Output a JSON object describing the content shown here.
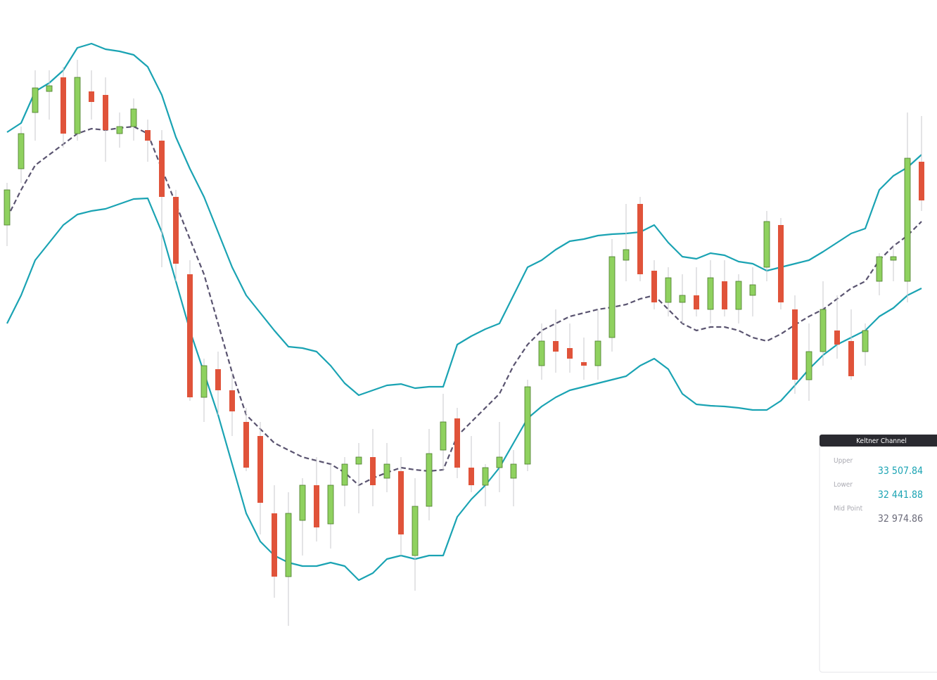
{
  "chart_data": {
    "type": "candlestick",
    "ylim": [
      29300,
      34700
    ],
    "up_color": "#8fd15f",
    "down_color": "#e0533a",
    "open": [
      32908,
      33356,
      33804,
      33972,
      34084,
      33636,
      33972,
      33944,
      33636,
      33692,
      33664,
      33580,
      33132,
      32516,
      31536,
      31760,
      31592,
      31340,
      31228,
      30612,
      30108,
      30556,
      30836,
      30528,
      30836,
      31004,
      31060,
      30892,
      30948,
      30276,
      30668,
      31116,
      31368,
      30976,
      30836,
      30976,
      30892,
      31004,
      31788,
      31984,
      31928,
      31816,
      31788,
      32012,
      32628,
      33076,
      32544,
      32292,
      32292,
      32348,
      32236,
      32460,
      32236,
      32348,
      32572,
      32908,
      32236,
      31676,
      31900,
      32068,
      31984,
      31900,
      32460,
      32628,
      32460,
      33412
    ],
    "high": [
      33244,
      33692,
      34140,
      34140,
      34168,
      34224,
      34140,
      34084,
      33804,
      33916,
      33748,
      33664,
      33188,
      32628,
      31844,
      31900,
      31732,
      31452,
      31340,
      30836,
      30780,
      30892,
      31060,
      31004,
      31060,
      31172,
      31284,
      31172,
      31060,
      30892,
      31284,
      31564,
      31452,
      31228,
      31004,
      31340,
      31116,
      31676,
      32124,
      32236,
      32124,
      32012,
      32236,
      32796,
      33076,
      33132,
      32628,
      32572,
      32516,
      32572,
      32628,
      32628,
      32516,
      32572,
      33020,
      32964,
      32348,
      32124,
      32460,
      32348,
      32236,
      32124,
      32684,
      32740,
      33804,
      33776
    ],
    "low": [
      32740,
      33244,
      33580,
      33748,
      33524,
      33580,
      33748,
      33412,
      33524,
      33580,
      33412,
      32572,
      32460,
      31508,
      31340,
      31396,
      31228,
      30948,
      30444,
      29940,
      29716,
      30276,
      30388,
      30332,
      30668,
      30612,
      30668,
      30780,
      30276,
      29996,
      30556,
      30948,
      30892,
      30780,
      30668,
      30780,
      30668,
      30948,
      31676,
      31732,
      31732,
      31676,
      31676,
      31900,
      32460,
      32460,
      32236,
      32180,
      32124,
      32180,
      32124,
      32180,
      32124,
      32180,
      32460,
      32236,
      31564,
      31508,
      31788,
      31844,
      31676,
      31788,
      32348,
      32460,
      32292,
      33020
    ],
    "close": [
      33188,
      33636,
      34000,
      34017,
      33636,
      34084,
      33888,
      33664,
      33692,
      33832,
      33580,
      33132,
      32600,
      31536,
      31788,
      31592,
      31424,
      30976,
      30696,
      30108,
      30612,
      30836,
      30500,
      30836,
      31004,
      31060,
      30836,
      31004,
      30444,
      30668,
      31088,
      31340,
      30976,
      30836,
      30976,
      31060,
      31004,
      31620,
      31984,
      31900,
      31844,
      31788,
      31984,
      32656,
      32712,
      32516,
      32292,
      32488,
      32348,
      32236,
      32488,
      32236,
      32460,
      32432,
      32936,
      32292,
      31676,
      31900,
      32236,
      31956,
      31704,
      32068,
      32656,
      32656,
      33440,
      33104
    ],
    "channel": {
      "title": "Keltner Channel",
      "band_color": "#1aa3b3",
      "mid_color": "#5a5470",
      "upper": [
        33647,
        33720,
        33972,
        34039,
        34140,
        34319,
        34353,
        34308,
        34291,
        34263,
        34168,
        33944,
        33608,
        33356,
        33132,
        32852,
        32572,
        32348,
        32208,
        32068,
        31939,
        31928,
        31900,
        31788,
        31648,
        31553,
        31592,
        31631,
        31642,
        31609,
        31620,
        31620,
        31956,
        32023,
        32079,
        32124,
        32348,
        32572,
        32628,
        32712,
        32779,
        32796,
        32824,
        32835,
        32841,
        32852,
        32908,
        32768,
        32656,
        32639,
        32684,
        32667,
        32617,
        32600,
        32544,
        32572,
        32600,
        32628,
        32695,
        32768,
        32841,
        32880,
        33188,
        33300,
        33367,
        33468
      ],
      "mid": [
        32964,
        33188,
        33384,
        33468,
        33552,
        33636,
        33675,
        33664,
        33681,
        33692,
        33636,
        33356,
        33076,
        32796,
        32516,
        32124,
        31732,
        31396,
        31284,
        31172,
        31116,
        31060,
        31032,
        31004,
        30937,
        30836,
        30892,
        30937,
        30976,
        30959,
        30948,
        30959,
        31228,
        31340,
        31452,
        31564,
        31788,
        31956,
        32068,
        32124,
        32180,
        32208,
        32236,
        32253,
        32275,
        32320,
        32348,
        32236,
        32124,
        32068,
        32096,
        32096,
        32068,
        32012,
        31984,
        32040,
        32113,
        32180,
        32236,
        32320,
        32404,
        32460,
        32628,
        32740,
        32824,
        32936
      ],
      "lower": [
        32124,
        32348,
        32628,
        32768,
        32908,
        32992,
        33020,
        33037,
        33076,
        33115,
        33121,
        32852,
        32460,
        32068,
        31732,
        31396,
        31004,
        30612,
        30388,
        30276,
        30220,
        30192,
        30192,
        30220,
        30192,
        30080,
        30136,
        30248,
        30276,
        30248,
        30276,
        30276,
        30584,
        30724,
        30836,
        30976,
        31172,
        31368,
        31463,
        31536,
        31592,
        31620,
        31648,
        31676,
        31704,
        31788,
        31844,
        31760,
        31564,
        31480,
        31469,
        31463,
        31452,
        31435,
        31435,
        31508,
        31631,
        31760,
        31872,
        31956,
        32012,
        32068,
        32180,
        32247,
        32348,
        32404
      ]
    },
    "readout": [
      {
        "label": "Upper",
        "value": 33507.84,
        "value_label": "33 507.84",
        "color": "#1aa3b3"
      },
      {
        "label": "Lower",
        "value": 32441.88,
        "value_label": "32 441.88",
        "color": "#1aa3b3"
      },
      {
        "label": "Mid Point",
        "value": 32974.86,
        "value_label": "32 974.86",
        "color": "#6b6b7a"
      }
    ]
  }
}
